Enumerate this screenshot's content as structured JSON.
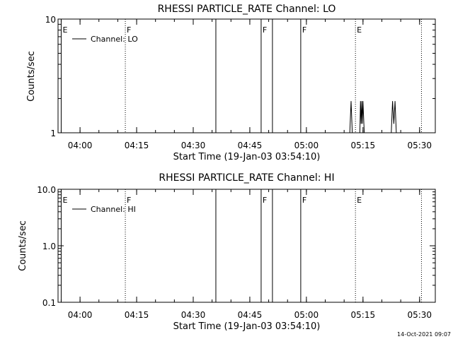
{
  "chart_data": [
    {
      "type": "line",
      "title": "RHESSI PARTICLE_RATE Channel: LO",
      "xlabel": "Start Time (19-Jan-03 03:54:10)",
      "ylabel": "Counts/sec",
      "yscale": "log",
      "ylim": [
        1,
        10
      ],
      "ytick_labels": [
        "1",
        "10"
      ],
      "xlim_minutes_since_start": [
        0,
        100
      ],
      "xtick_labels": [
        "04:00",
        "04:15",
        "04:30",
        "04:45",
        "05:00",
        "05:15",
        "05:30"
      ],
      "legend": {
        "position": "top-left",
        "entries": [
          "Channel: LO"
        ]
      },
      "series": [
        {
          "name": "Channel: LO",
          "points": [
            {
              "t": "05:11:30",
              "y": 1
            },
            {
              "t": "05:11:50",
              "y": 1.9
            },
            {
              "t": "05:12:10",
              "y": 1
            },
            {
              "t": "05:14:10",
              "y": 1
            },
            {
              "t": "05:14:20",
              "y": 1.9
            },
            {
              "t": "05:14:30",
              "y": 1.2
            },
            {
              "t": "05:14:40",
              "y": 1.9
            },
            {
              "t": "05:14:50",
              "y": 1.2
            },
            {
              "t": "05:15:00",
              "y": 1.9
            },
            {
              "t": "05:15:20",
              "y": 1
            },
            {
              "t": "05:22:30",
              "y": 1
            },
            {
              "t": "05:22:50",
              "y": 1.9
            },
            {
              "t": "05:23:10",
              "y": 1.2
            },
            {
              "t": "05:23:30",
              "y": 1.9
            },
            {
              "t": "05:23:50",
              "y": 1
            }
          ]
        }
      ],
      "markers": [
        {
          "label": "E",
          "time": "03:55:00",
          "style": "solid",
          "labeled": true
        },
        {
          "label": "F",
          "time": "04:12:00",
          "style": "dotted",
          "labeled": true
        },
        {
          "label": "",
          "time": "04:36:00",
          "style": "solid",
          "labeled": false
        },
        {
          "label": "F",
          "time": "04:48:00",
          "style": "solid",
          "labeled": true
        },
        {
          "label": "",
          "time": "04:51:00",
          "style": "solid",
          "labeled": false
        },
        {
          "label": "F",
          "time": "04:58:30",
          "style": "solid",
          "labeled": true
        },
        {
          "label": "E",
          "time": "05:13:00",
          "style": "dotted",
          "labeled": true
        },
        {
          "label": "",
          "time": "05:30:30",
          "style": "dotted",
          "labeled": false
        }
      ]
    },
    {
      "type": "line",
      "title": "RHESSI PARTICLE_RATE Channel: HI",
      "xlabel": "Start Time (19-Jan-03 03:54:10)",
      "ylabel": "Counts/sec",
      "yscale": "log",
      "ylim": [
        0.1,
        10
      ],
      "ytick_labels": [
        "0.1",
        "1.0",
        "10.0"
      ],
      "xlim_minutes_since_start": [
        0,
        100
      ],
      "xtick_labels": [
        "04:00",
        "04:15",
        "04:30",
        "04:45",
        "05:00",
        "05:15",
        "05:30"
      ],
      "legend": {
        "position": "top-left",
        "entries": [
          "Channel: HI"
        ]
      },
      "series": [
        {
          "name": "Channel: HI",
          "points": []
        }
      ],
      "markers": [
        {
          "label": "E",
          "time": "03:55:00",
          "style": "solid",
          "labeled": true
        },
        {
          "label": "F",
          "time": "04:12:00",
          "style": "dotted",
          "labeled": true
        },
        {
          "label": "",
          "time": "04:36:00",
          "style": "solid",
          "labeled": false
        },
        {
          "label": "F",
          "time": "04:48:00",
          "style": "solid",
          "labeled": true
        },
        {
          "label": "",
          "time": "04:51:00",
          "style": "solid",
          "labeled": false
        },
        {
          "label": "F",
          "time": "04:58:30",
          "style": "solid",
          "labeled": true
        },
        {
          "label": "E",
          "time": "05:13:00",
          "style": "dotted",
          "labeled": true
        },
        {
          "label": "",
          "time": "05:30:30",
          "style": "dotted",
          "labeled": false
        }
      ]
    }
  ],
  "footer": {
    "timestamp": "14-Oct-2021 09:07"
  }
}
